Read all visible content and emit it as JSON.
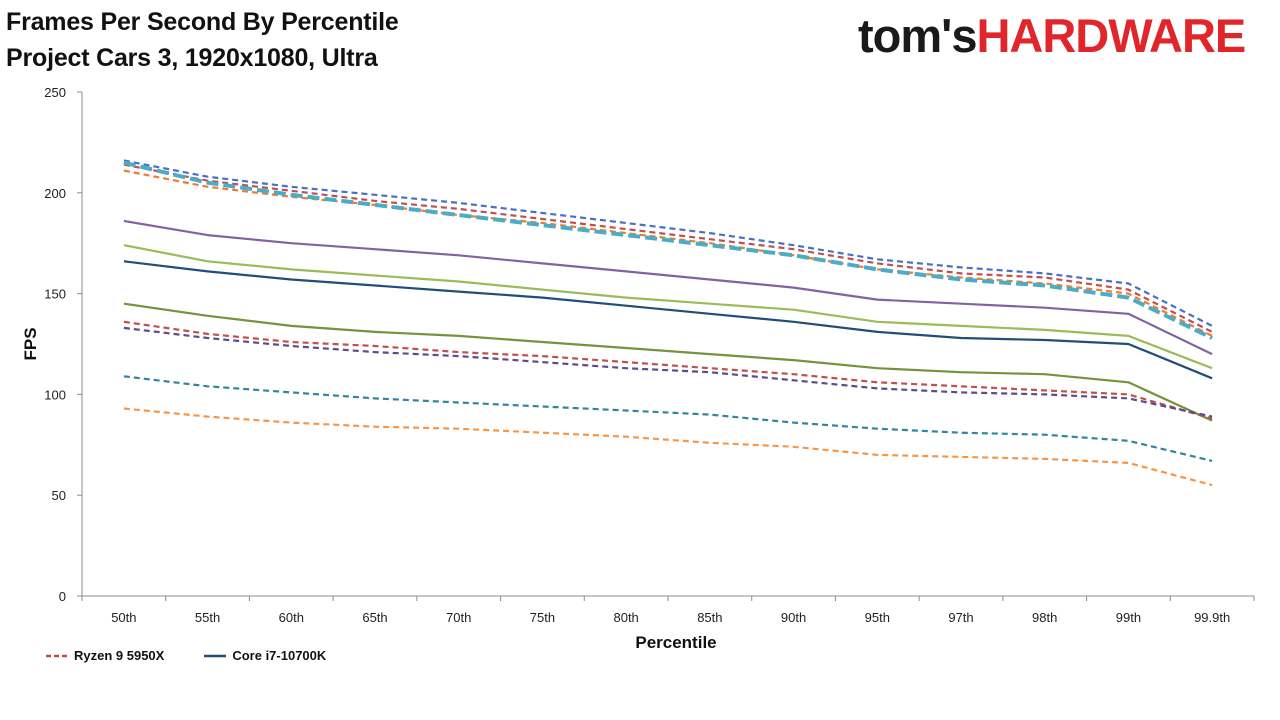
{
  "title": {
    "line1": "Frames Per Second By Percentile",
    "line2": "Project Cars 3, 1920x1080, Ultra"
  },
  "brand": {
    "part1": "tom's",
    "part2": "HARDWARE",
    "color_dark": "#1a1a1a",
    "color_red": "#e0262b"
  },
  "chart_data": {
    "type": "line",
    "xlabel": "Percentile",
    "ylabel": "FPS",
    "ylim": [
      0,
      250
    ],
    "yticks": [
      0,
      50,
      100,
      150,
      200,
      250
    ],
    "categories": [
      "50th",
      "55th",
      "60th",
      "65th",
      "70th",
      "75th",
      "80th",
      "85th",
      "90th",
      "95th",
      "97th",
      "98th",
      "99th",
      "99.9th"
    ],
    "grid": false,
    "legend_position": "bottom-left",
    "series": [
      {
        "name": "",
        "color": "#4472c4",
        "dash": "dashed",
        "width": 2.2,
        "values": [
          216,
          208,
          203,
          199,
          195,
          190,
          185,
          180,
          174,
          167,
          163,
          160,
          155,
          134
        ]
      },
      {
        "name": "",
        "color": "#ed7d31",
        "dash": "dashed",
        "width": 2.2,
        "values": [
          211,
          203,
          198,
          194,
          189,
          185,
          180,
          175,
          169,
          162,
          158,
          155,
          150,
          129
        ]
      },
      {
        "name": "Ryzen 9 5950X",
        "color": "#c0504d",
        "dash": "dashed",
        "width": 2.2,
        "values": [
          214,
          206,
          201,
          196,
          192,
          187,
          182,
          177,
          172,
          165,
          160,
          158,
          152,
          131
        ]
      },
      {
        "name": "",
        "color": "#4bacc6",
        "dash": "heavy",
        "width": 4,
        "values": [
          215,
          205,
          199,
          194,
          189,
          184,
          179,
          174,
          169,
          162,
          157,
          154,
          148,
          128
        ]
      },
      {
        "name": "",
        "color": "#8064a2",
        "dash": "solid",
        "width": 2.2,
        "values": [
          186,
          179,
          175,
          172,
          169,
          165,
          161,
          157,
          153,
          147,
          145,
          143,
          140,
          120
        ]
      },
      {
        "name": "",
        "color": "#9bbb59",
        "dash": "solid",
        "width": 2.2,
        "values": [
          174,
          166,
          162,
          159,
          156,
          152,
          148,
          145,
          142,
          136,
          134,
          132,
          129,
          113
        ]
      },
      {
        "name": "Core i7-10700K",
        "color": "#1f4e79",
        "dash": "solid",
        "width": 2.2,
        "values": [
          166,
          161,
          157,
          154,
          151,
          148,
          144,
          140,
          136,
          131,
          128,
          127,
          125,
          108
        ]
      },
      {
        "name": "",
        "color": "#76923c",
        "dash": "solid",
        "width": 2.2,
        "values": [
          145,
          139,
          134,
          131,
          129,
          126,
          123,
          120,
          117,
          113,
          111,
          110,
          106,
          87
        ]
      },
      {
        "name": "",
        "color": "#c0504d",
        "dash": "dashed",
        "width": 2.2,
        "values": [
          136,
          130,
          126,
          124,
          121,
          119,
          116,
          113,
          110,
          106,
          104,
          102,
          100,
          88
        ]
      },
      {
        "name": "",
        "color": "#5f4b8b",
        "dash": "dashed",
        "width": 2.2,
        "values": [
          133,
          128,
          124,
          121,
          119,
          116,
          113,
          111,
          107,
          103,
          101,
          100,
          98,
          89
        ]
      },
      {
        "name": "",
        "color": "#31859c",
        "dash": "dashed",
        "width": 2.2,
        "values": [
          109,
          104,
          101,
          98,
          96,
          94,
          92,
          90,
          86,
          83,
          81,
          80,
          77,
          67
        ]
      },
      {
        "name": "",
        "color": "#f79646",
        "dash": "dashed",
        "width": 2.2,
        "values": [
          93,
          89,
          86,
          84,
          83,
          81,
          79,
          76,
          74,
          70,
          69,
          68,
          66,
          55
        ]
      }
    ]
  },
  "legend": [
    {
      "label": "Ryzen 9 5950X",
      "color": "#c0504d",
      "dash": "dashed"
    },
    {
      "label": "Core i7-10700K",
      "color": "#1f4e79",
      "dash": "solid"
    }
  ]
}
